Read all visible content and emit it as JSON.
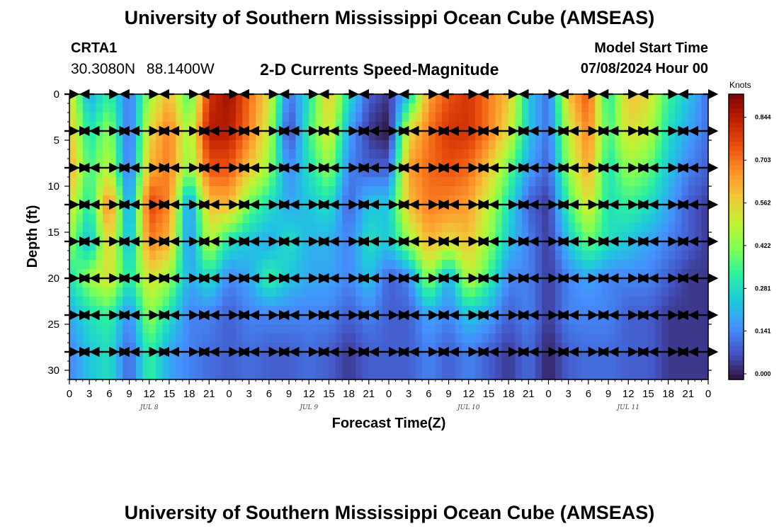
{
  "header": {
    "title": "University of Southern Mississippi Ocean Cube (AMSEAS)",
    "station": "CRTA1",
    "lat": "30.3080N",
    "lon": "88.1400W",
    "subtitle": "2-D Currents Speed-Magnitude",
    "start_label": "Model Start Time",
    "start_value": "07/08/2024 Hour 00"
  },
  "footer": {
    "title": "University of Southern Mississippi Ocean Cube (AMSEAS)"
  },
  "colors": {
    "scale": [
      "#30123b",
      "#4454c4",
      "#4490fe",
      "#1fc8de",
      "#29efa2",
      "#7dff56",
      "#c1f334",
      "#f1ca3a",
      "#fe922a",
      "#ea4f0d",
      "#be2102",
      "#7a0403"
    ]
  },
  "chart_data": {
    "type": "heatmap",
    "title": "2-D Currents Speed-Magnitude",
    "xlabel": "Forecast Time(Z)",
    "ylabel": "Depth (ft)",
    "x_ticks": [
      "0",
      "3",
      "6",
      "9",
      "12",
      "15",
      "18",
      "21",
      "0",
      "3",
      "6",
      "9",
      "12",
      "15",
      "18",
      "21",
      "0",
      "3",
      "6",
      "9",
      "12",
      "15",
      "18",
      "21",
      "0",
      "3",
      "6",
      "9",
      "12",
      "15",
      "18",
      "21",
      "0"
    ],
    "day_labels": [
      "JUL 8",
      "JUL 9",
      "JUL 10",
      "JUL 11"
    ],
    "y_ticks": [
      "0",
      "5",
      "10",
      "15",
      "20",
      "25",
      "30"
    ],
    "ylim": [
      0,
      31
    ],
    "xlim_hours": [
      0,
      96
    ],
    "colorbar": {
      "label": "Knots",
      "ticks": [
        "0.000",
        "0.141",
        "0.281",
        "0.422",
        "0.562",
        "0.703",
        "0.844"
      ],
      "range": [
        0,
        0.92
      ]
    },
    "depths_ft": [
      0,
      4,
      8,
      12,
      16,
      20,
      24,
      28,
      31
    ],
    "time_hours": [
      0,
      3,
      6,
      9,
      12,
      15,
      18,
      21,
      24,
      27,
      30,
      33,
      36,
      39,
      42,
      45,
      48,
      51,
      54,
      57,
      60,
      63,
      66,
      69,
      72,
      75,
      78,
      81,
      84,
      87,
      90,
      93,
      96
    ],
    "speed_knots": [
      [
        0.55,
        0.2,
        0.35,
        0.12,
        0.45,
        0.62,
        0.35,
        0.8,
        0.88,
        0.72,
        0.55,
        0.12,
        0.3,
        0.6,
        0.3,
        0.1,
        0.05,
        0.25,
        0.65,
        0.75,
        0.8,
        0.7,
        0.6,
        0.25,
        0.12,
        0.6,
        0.75,
        0.3,
        0.6,
        0.55,
        0.35,
        0.25,
        0.12
      ],
      [
        0.6,
        0.3,
        0.45,
        0.1,
        0.55,
        0.7,
        0.45,
        0.85,
        0.85,
        0.7,
        0.5,
        0.05,
        0.35,
        0.55,
        0.2,
        0.05,
        0.0,
        0.55,
        0.7,
        0.8,
        0.8,
        0.7,
        0.55,
        0.25,
        0.12,
        0.5,
        0.7,
        0.35,
        0.55,
        0.5,
        0.3,
        0.2,
        0.12
      ],
      [
        0.65,
        0.35,
        0.5,
        0.1,
        0.62,
        0.7,
        0.42,
        0.75,
        0.75,
        0.6,
        0.45,
        0.15,
        0.3,
        0.45,
        0.15,
        0.1,
        0.1,
        0.65,
        0.72,
        0.75,
        0.72,
        0.6,
        0.4,
        0.2,
        0.1,
        0.45,
        0.65,
        0.3,
        0.45,
        0.4,
        0.25,
        0.15,
        0.1
      ],
      [
        0.55,
        0.3,
        0.72,
        0.15,
        0.78,
        0.68,
        0.15,
        0.6,
        0.62,
        0.4,
        0.3,
        0.2,
        0.25,
        0.3,
        0.1,
        0.25,
        0.25,
        0.6,
        0.7,
        0.68,
        0.65,
        0.5,
        0.3,
        0.1,
        0.05,
        0.35,
        0.55,
        0.3,
        0.35,
        0.3,
        0.2,
        0.1,
        0.05
      ],
      [
        0.45,
        0.22,
        0.6,
        0.2,
        0.7,
        0.62,
        0.15,
        0.5,
        0.3,
        0.25,
        0.2,
        0.3,
        0.22,
        0.22,
        0.15,
        0.3,
        0.25,
        0.45,
        0.62,
        0.55,
        0.6,
        0.45,
        0.25,
        0.15,
        0.05,
        0.25,
        0.4,
        0.3,
        0.25,
        0.2,
        0.15,
        0.1,
        0.05
      ],
      [
        0.3,
        0.45,
        0.55,
        0.3,
        0.55,
        0.45,
        0.2,
        0.3,
        0.15,
        0.2,
        0.35,
        0.25,
        0.2,
        0.2,
        0.15,
        0.25,
        0.1,
        0.15,
        0.45,
        0.2,
        0.5,
        0.35,
        0.15,
        0.15,
        0.05,
        0.15,
        0.2,
        0.15,
        0.15,
        0.15,
        0.1,
        0.05,
        0.05
      ],
      [
        0.2,
        0.3,
        0.35,
        0.15,
        0.45,
        0.3,
        0.15,
        0.15,
        0.1,
        0.15,
        0.15,
        0.15,
        0.15,
        0.15,
        0.1,
        0.15,
        0.1,
        0.1,
        0.2,
        0.15,
        0.25,
        0.2,
        0.1,
        0.15,
        0.05,
        0.15,
        0.15,
        0.15,
        0.1,
        0.1,
        0.05,
        0.05,
        0.05
      ],
      [
        0.15,
        0.25,
        0.3,
        0.1,
        0.35,
        0.2,
        0.15,
        0.12,
        0.1,
        0.12,
        0.1,
        0.1,
        0.12,
        0.1,
        0.05,
        0.1,
        0.1,
        0.1,
        0.15,
        0.1,
        0.15,
        0.1,
        0.05,
        0.12,
        0.02,
        0.1,
        0.12,
        0.12,
        0.1,
        0.1,
        0.05,
        0.05,
        0.05
      ],
      [
        0.15,
        0.25,
        0.3,
        0.1,
        0.35,
        0.2,
        0.15,
        0.12,
        0.1,
        0.12,
        0.1,
        0.1,
        0.12,
        0.1,
        0.05,
        0.1,
        0.1,
        0.1,
        0.15,
        0.1,
        0.15,
        0.1,
        0.05,
        0.12,
        0.02,
        0.1,
        0.12,
        0.12,
        0.1,
        0.1,
        0.05,
        0.05,
        0.05
      ]
    ],
    "vectors": {
      "depths_ft": [
        0,
        4,
        8,
        12,
        16,
        20,
        24,
        28
      ],
      "time_hours": [
        0,
        1.5,
        3,
        4.5,
        6,
        7.5,
        9,
        10.5,
        12,
        13.5,
        15,
        16.5,
        18,
        19.5,
        21,
        22.5,
        24,
        25.5,
        27,
        28.5,
        30,
        31.5,
        33,
        34.5,
        36,
        37.5,
        39,
        40.5,
        42,
        43.5,
        45,
        46.5,
        48,
        49.5,
        51,
        52.5,
        54,
        55.5,
        57,
        58.5,
        60,
        61.5,
        63,
        64.5,
        66,
        67.5,
        69,
        70.5,
        72,
        73.5,
        75,
        76.5,
        78,
        79.5,
        81,
        82.5,
        84,
        85.5,
        87,
        88.5,
        90,
        91.5,
        93,
        94.5,
        96
      ],
      "direction_pattern_deg": [
        0,
        0,
        180,
        180,
        0,
        0,
        180,
        180,
        0,
        0,
        180,
        180,
        0,
        0,
        180,
        180,
        0,
        0,
        180,
        180,
        0,
        0,
        180,
        180,
        0,
        0,
        180,
        180,
        0,
        0,
        180,
        180,
        0,
        0,
        180,
        180,
        0,
        0,
        180,
        180,
        0,
        0,
        180,
        180,
        0,
        0,
        180,
        180,
        0,
        0,
        180,
        180,
        0,
        0,
        180,
        180,
        0,
        0,
        180,
        180,
        0,
        0,
        180,
        180,
        0
      ]
    }
  }
}
